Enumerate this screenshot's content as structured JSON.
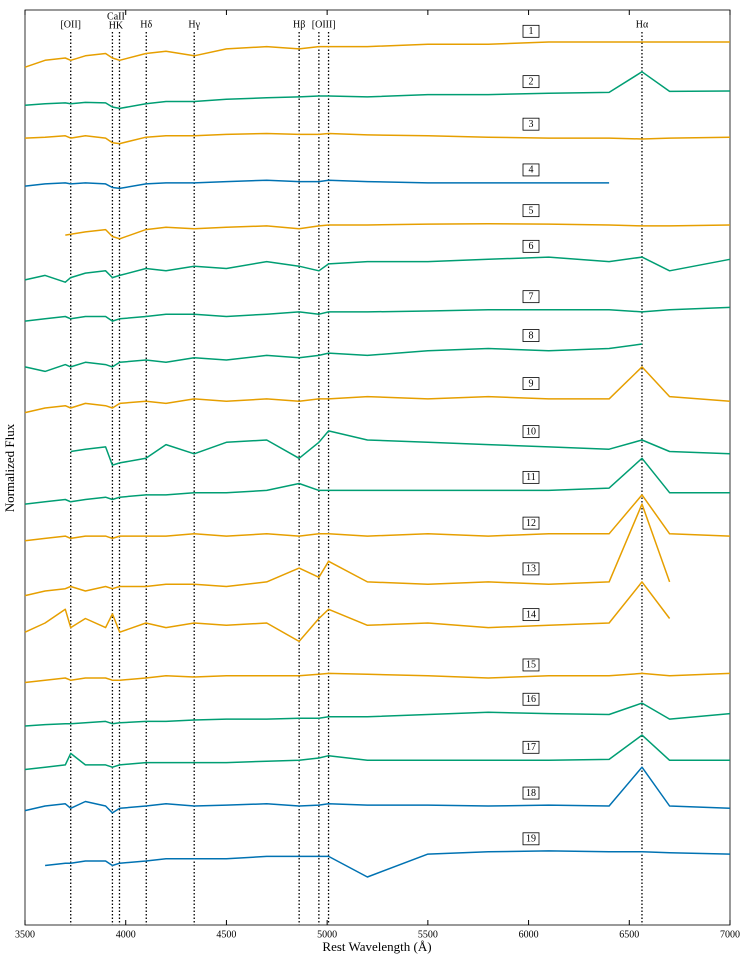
{
  "chart_data": {
    "type": "line",
    "xlabel": "Rest Wavelength (Å)",
    "ylabel": "Normalized Flux",
    "xlim": [
      3500,
      7000
    ],
    "xticks": [
      3500,
      4000,
      4500,
      5000,
      5500,
      6000,
      6500,
      7000
    ],
    "ylim": [
      0,
      20
    ],
    "lines": [
      {
        "label": "[OII]",
        "wavelengths": [
          3727
        ]
      },
      {
        "label": "CaII",
        "sublabel": "HK",
        "wavelengths": [
          3934,
          3969
        ]
      },
      {
        "label": "Hδ",
        "wavelengths": [
          4102
        ]
      },
      {
        "label": "Hγ",
        "wavelengths": [
          4340
        ]
      },
      {
        "label": "Hβ",
        "wavelengths": [
          4861
        ]
      },
      {
        "label": "[OIII]",
        "wavelengths": [
          4959,
          5007
        ]
      },
      {
        "label": "Hα",
        "wavelengths": [
          6563
        ]
      }
    ],
    "x": [
      3500,
      3600,
      3700,
      3727,
      3800,
      3900,
      3934,
      3970,
      4100,
      4200,
      4340,
      4500,
      4700,
      4861,
      4959,
      5007,
      5200,
      5500,
      5800,
      6100,
      6400,
      6563,
      6700,
      7000
    ],
    "series": [
      {
        "name": "1",
        "color": "#e69f00",
        "values": [
          18.75,
          18.9,
          18.95,
          18.9,
          19.0,
          19.05,
          18.95,
          18.9,
          19.05,
          19.1,
          19.0,
          19.15,
          19.2,
          19.15,
          19.2,
          19.2,
          19.2,
          19.25,
          19.25,
          19.3,
          19.3,
          19.3,
          19.3,
          19.3
        ]
      },
      {
        "name": "2",
        "color": "#009e73",
        "values": [
          17.92,
          17.95,
          17.97,
          17.95,
          17.98,
          17.97,
          17.88,
          17.85,
          17.95,
          18.0,
          18.0,
          18.05,
          18.08,
          18.1,
          18.12,
          18.12,
          18.1,
          18.15,
          18.15,
          18.18,
          18.2,
          18.65,
          18.22,
          18.23
        ]
      },
      {
        "name": "3",
        "color": "#e69f00",
        "values": [
          17.2,
          17.22,
          17.25,
          17.2,
          17.25,
          17.2,
          17.1,
          17.08,
          17.22,
          17.25,
          17.25,
          17.28,
          17.3,
          17.28,
          17.28,
          17.3,
          17.27,
          17.25,
          17.22,
          17.2,
          17.2,
          17.18,
          17.2,
          17.22
        ]
      },
      {
        "name": "4",
        "color": "#0072b2",
        "values": [
          16.15,
          16.2,
          16.22,
          16.2,
          16.22,
          16.2,
          16.12,
          16.1,
          16.2,
          16.22,
          16.22,
          16.25,
          16.28,
          16.25,
          16.25,
          16.28,
          16.25,
          16.22,
          16.22,
          16.22,
          16.22,
          null,
          null,
          null
        ]
      },
      {
        "name": "5",
        "color": "#e69f00",
        "values": [
          null,
          null,
          15.08,
          15.1,
          15.15,
          15.2,
          15.05,
          15.0,
          15.2,
          15.25,
          15.22,
          15.25,
          15.28,
          15.22,
          15.28,
          15.3,
          15.3,
          15.32,
          15.33,
          15.32,
          15.3,
          15.28,
          15.28,
          15.3
        ]
      },
      {
        "name": "6",
        "color": "#009e73",
        "values": [
          14.1,
          14.2,
          14.05,
          14.15,
          14.25,
          14.3,
          14.15,
          14.2,
          14.35,
          14.3,
          14.4,
          14.35,
          14.5,
          14.4,
          14.3,
          14.45,
          14.5,
          14.5,
          14.55,
          14.6,
          14.5,
          14.6,
          14.3,
          14.55
        ]
      },
      {
        "name": "7",
        "color": "#009e73",
        "values": [
          13.2,
          13.25,
          13.3,
          13.25,
          13.3,
          13.3,
          13.2,
          13.25,
          13.3,
          13.35,
          13.35,
          13.3,
          13.35,
          13.4,
          13.35,
          13.4,
          13.4,
          13.42,
          13.45,
          13.45,
          13.45,
          13.4,
          13.45,
          13.5
        ]
      },
      {
        "name": "8",
        "color": "#009e73",
        "values": [
          12.2,
          12.1,
          12.25,
          12.2,
          12.3,
          12.25,
          12.2,
          12.3,
          12.35,
          12.3,
          12.4,
          12.35,
          12.45,
          12.4,
          12.45,
          12.5,
          12.45,
          12.55,
          12.6,
          12.55,
          12.6,
          12.7,
          null,
          null
        ]
      },
      {
        "name": "9",
        "color": "#e69f00",
        "values": [
          11.2,
          11.3,
          11.35,
          11.3,
          11.4,
          11.35,
          11.3,
          11.4,
          11.45,
          11.4,
          11.5,
          11.45,
          11.5,
          11.45,
          11.5,
          11.5,
          11.55,
          11.5,
          11.55,
          11.5,
          11.5,
          12.2,
          11.55,
          11.45
        ]
      },
      {
        "name": "10",
        "color": "#009e73",
        "values": [
          null,
          null,
          null,
          10.35,
          10.4,
          10.45,
          10.05,
          10.1,
          10.2,
          10.5,
          10.3,
          10.55,
          10.6,
          10.2,
          10.55,
          10.8,
          10.6,
          10.55,
          10.5,
          10.45,
          10.4,
          10.6,
          10.35,
          10.3
        ]
      },
      {
        "name": "11",
        "color": "#009e73",
        "values": [
          9.2,
          9.25,
          9.3,
          9.25,
          9.3,
          9.35,
          9.3,
          9.35,
          9.4,
          9.4,
          9.45,
          9.45,
          9.5,
          9.65,
          9.5,
          9.5,
          9.5,
          9.5,
          9.5,
          9.5,
          9.55,
          10.2,
          9.45,
          9.45
        ]
      },
      {
        "name": "12",
        "color": "#e69f00",
        "values": [
          8.4,
          8.45,
          8.5,
          8.45,
          8.5,
          8.5,
          8.45,
          8.5,
          8.5,
          8.5,
          8.55,
          8.5,
          8.55,
          8.5,
          8.55,
          8.55,
          8.5,
          8.55,
          8.5,
          8.55,
          8.55,
          9.4,
          8.55,
          8.5
        ]
      },
      {
        "name": "13",
        "color": "#e69f00",
        "values": [
          7.2,
          7.3,
          7.35,
          7.4,
          7.3,
          7.4,
          7.35,
          7.4,
          7.4,
          7.45,
          7.45,
          7.4,
          7.5,
          7.8,
          7.6,
          7.95,
          7.5,
          7.45,
          7.5,
          7.45,
          7.5,
          9.2,
          7.5,
          null
        ]
      },
      {
        "name": "14",
        "color": "#e69f00",
        "values": [
          6.4,
          6.6,
          6.9,
          6.5,
          6.7,
          6.5,
          6.8,
          6.4,
          6.6,
          6.5,
          6.6,
          6.55,
          6.6,
          6.2,
          6.7,
          6.9,
          6.55,
          6.6,
          6.5,
          6.55,
          6.6,
          7.5,
          6.7,
          null
        ]
      },
      {
        "name": "15",
        "color": "#e69f00",
        "values": [
          5.3,
          5.35,
          5.4,
          5.35,
          5.4,
          5.4,
          5.35,
          5.35,
          5.4,
          5.45,
          5.42,
          5.45,
          5.45,
          5.45,
          5.48,
          5.5,
          5.48,
          5.45,
          5.4,
          5.45,
          5.45,
          5.5,
          5.45,
          5.5
        ]
      },
      {
        "name": "16",
        "color": "#009e73",
        "values": [
          4.35,
          4.38,
          4.4,
          4.4,
          4.42,
          4.45,
          4.4,
          4.42,
          4.45,
          4.45,
          4.48,
          4.5,
          4.5,
          4.52,
          4.52,
          4.55,
          4.55,
          4.6,
          4.65,
          4.62,
          4.6,
          4.85,
          4.5,
          4.62
        ]
      },
      {
        "name": "17",
        "color": "#009e73",
        "values": [
          3.4,
          3.45,
          3.5,
          3.75,
          3.5,
          3.5,
          3.45,
          3.5,
          3.55,
          3.55,
          3.55,
          3.55,
          3.58,
          3.6,
          3.65,
          3.7,
          3.6,
          3.6,
          3.6,
          3.6,
          3.62,
          4.15,
          3.6,
          3.6
        ]
      },
      {
        "name": "18",
        "color": "#0072b2",
        "values": [
          2.5,
          2.6,
          2.65,
          2.55,
          2.7,
          2.6,
          2.45,
          2.55,
          2.6,
          2.65,
          2.6,
          2.62,
          2.65,
          2.6,
          2.62,
          2.65,
          2.62,
          2.62,
          2.6,
          2.62,
          2.6,
          3.45,
          2.6,
          2.55
        ]
      },
      {
        "name": "19",
        "color": "#0072b2",
        "values": [
          null,
          1.3,
          1.35,
          1.35,
          1.4,
          1.4,
          1.3,
          1.35,
          1.4,
          1.45,
          1.45,
          1.45,
          1.5,
          1.5,
          1.5,
          1.5,
          1.05,
          1.55,
          1.6,
          1.62,
          1.6,
          1.6,
          1.58,
          1.55
        ]
      }
    ]
  }
}
